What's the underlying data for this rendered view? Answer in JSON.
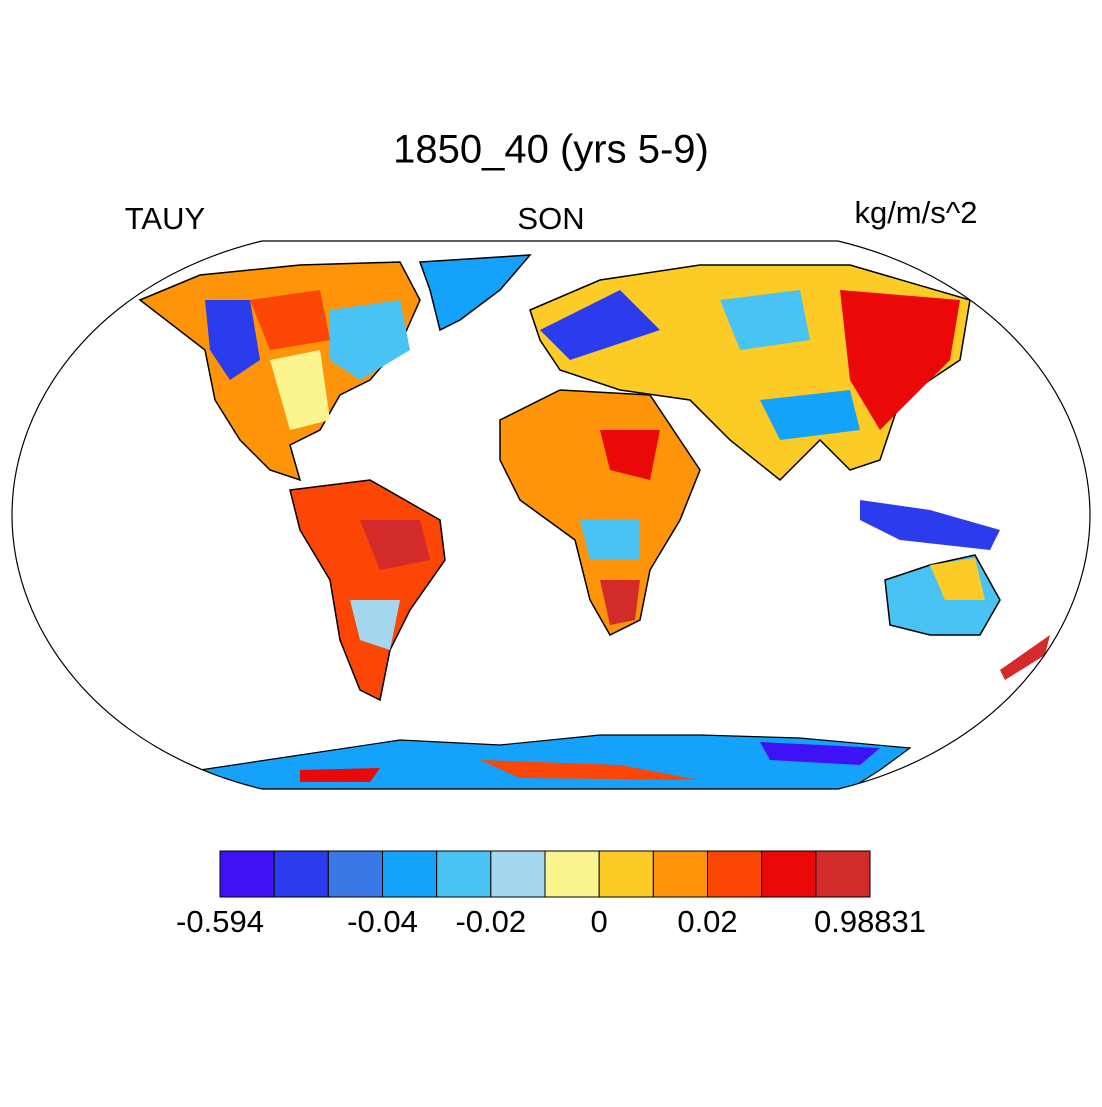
{
  "title": "1850_40 (yrs 5-9)",
  "left_string": "TAUY",
  "center_string": "SON",
  "right_string": "kg/m/s^2",
  "colorbar": {
    "colors": [
      "#3f12f6",
      "#2a3ced",
      "#3a78e8",
      "#14a2fb",
      "#48c3f4",
      "#a5d8ef",
      "#fcf58f",
      "#fdcb26",
      "#fd9409",
      "#fb4605",
      "#ea0808",
      "#d32a2a"
    ],
    "labels": [
      "-0.594",
      null,
      null,
      "-0.04",
      null,
      "-0.02",
      null,
      "0",
      null,
      "0.02",
      null,
      null,
      "0.98831"
    ]
  }
}
